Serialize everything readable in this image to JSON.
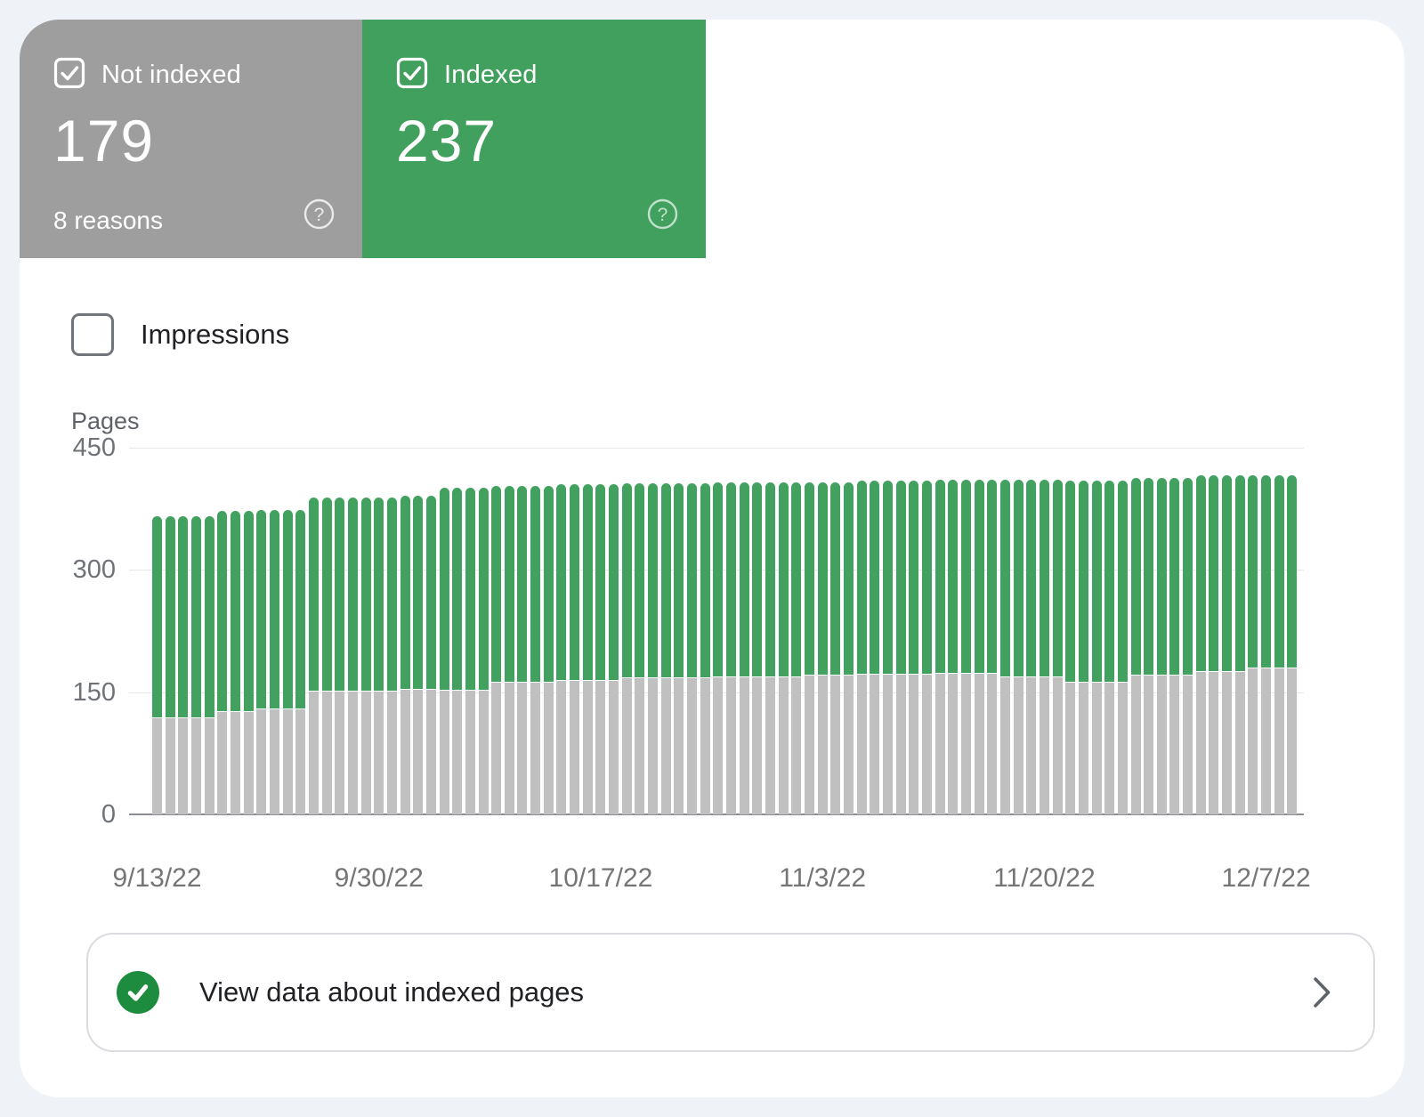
{
  "colors": {
    "page_background": "#EFF2F7",
    "card_not_indexed": "#9E9E9E",
    "card_indexed": "#41A05E",
    "bar_not_indexed": "#C0C0C0",
    "bar_indexed": "#43A160",
    "banner_check_green": "#1E8C3E",
    "text_dark": "#202124",
    "axis_text": "#757575"
  },
  "cards": {
    "not_indexed": {
      "label": "Not indexed",
      "value": "179",
      "sub": "8 reasons"
    },
    "indexed": {
      "label": "Indexed",
      "value": "237"
    }
  },
  "impressions": {
    "label": "Impressions",
    "checked": false
  },
  "chart_data": {
    "type": "bar",
    "stacked": true,
    "title": "",
    "ylabel": "Pages",
    "ylim": [
      0,
      450
    ],
    "yticks": [
      0,
      150,
      300,
      450
    ],
    "grid": true,
    "x_tick_labels": [
      "9/13/22",
      "9/30/22",
      "10/17/22",
      "11/3/22",
      "11/20/22",
      "12/7/22"
    ],
    "x_tick_slot_indices": [
      0,
      17,
      34,
      51,
      68,
      85
    ],
    "categories": [
      "9/13/22",
      "9/14/22",
      "9/15/22",
      "9/16/22",
      "9/17/22",
      "9/18/22",
      "9/19/22",
      "9/20/22",
      "9/21/22",
      "9/22/22",
      "9/23/22",
      "9/24/22",
      "9/25/22",
      "9/26/22",
      "9/27/22",
      "9/28/22",
      "9/29/22",
      "9/30/22",
      "10/1/22",
      "10/2/22",
      "10/3/22",
      "10/4/22",
      "10/5/22",
      "10/6/22",
      "10/7/22",
      "10/8/22",
      "10/9/22",
      "10/10/22",
      "10/11/22",
      "10/12/22",
      "10/13/22",
      "10/14/22",
      "10/15/22",
      "10/16/22",
      "10/17/22",
      "10/18/22",
      "10/19/22",
      "10/20/22",
      "10/21/22",
      "10/22/22",
      "10/23/22",
      "10/24/22",
      "10/25/22",
      "10/26/22",
      "10/27/22",
      "10/28/22",
      "10/29/22",
      "10/30/22",
      "10/31/22",
      "11/1/22",
      "11/2/22",
      "11/3/22",
      "11/4/22",
      "11/5/22",
      "11/6/22",
      "11/7/22",
      "11/8/22",
      "11/9/22",
      "11/10/22",
      "11/11/22",
      "11/12/22",
      "11/13/22",
      "11/14/22",
      "11/15/22",
      "11/16/22",
      "11/17/22",
      "11/18/22",
      "11/19/22",
      "11/20/22",
      "11/21/22",
      "11/22/22",
      "11/23/22",
      "11/24/22",
      "11/25/22",
      "11/26/22",
      "11/27/22",
      "11/28/22",
      "11/29/22",
      "11/30/22",
      "12/1/22",
      "12/2/22",
      "12/3/22",
      "12/4/22",
      "12/5/22",
      "12/6/22",
      "12/7/22",
      "12/8/22",
      "12/9/22"
    ],
    "series": [
      {
        "name": "Not indexed",
        "color": "#C0C0C0",
        "values": [
          118,
          118,
          118,
          118,
          118,
          126,
          126,
          126,
          129,
          129,
          129,
          129,
          151,
          151,
          151,
          151,
          151,
          151,
          151,
          153,
          153,
          153,
          152,
          152,
          152,
          152,
          162,
          162,
          162,
          162,
          162,
          164,
          164,
          164,
          164,
          164,
          167,
          167,
          167,
          167,
          167,
          167,
          167,
          168,
          168,
          168,
          168,
          168,
          168,
          168,
          170,
          170,
          170,
          170,
          172,
          172,
          172,
          172,
          172,
          172,
          173,
          173,
          173,
          173,
          173,
          168,
          168,
          168,
          168,
          168,
          162,
          162,
          162,
          162,
          162,
          170,
          170,
          170,
          170,
          170,
          175,
          175,
          175,
          175,
          179,
          179,
          179,
          179
        ]
      },
      {
        "name": "Indexed",
        "color": "#43A160",
        "values": [
          248,
          248,
          248,
          248,
          248,
          246,
          246,
          246,
          245,
          245,
          245,
          245,
          238,
          238,
          238,
          238,
          238,
          238,
          238,
          238,
          238,
          238,
          249,
          249,
          249,
          249,
          241,
          241,
          241,
          241,
          241,
          241,
          241,
          241,
          241,
          241,
          239,
          239,
          239,
          239,
          239,
          239,
          239,
          239,
          239,
          239,
          239,
          239,
          239,
          239,
          237,
          237,
          237,
          237,
          238,
          238,
          238,
          238,
          238,
          238,
          238,
          238,
          238,
          238,
          238,
          243,
          243,
          243,
          243,
          243,
          248,
          248,
          248,
          248,
          248,
          243,
          243,
          243,
          243,
          243,
          241,
          241,
          241,
          241,
          237,
          237,
          237,
          237
        ]
      }
    ],
    "legend_position": "none"
  },
  "banner": {
    "label": "View data about indexed pages"
  }
}
